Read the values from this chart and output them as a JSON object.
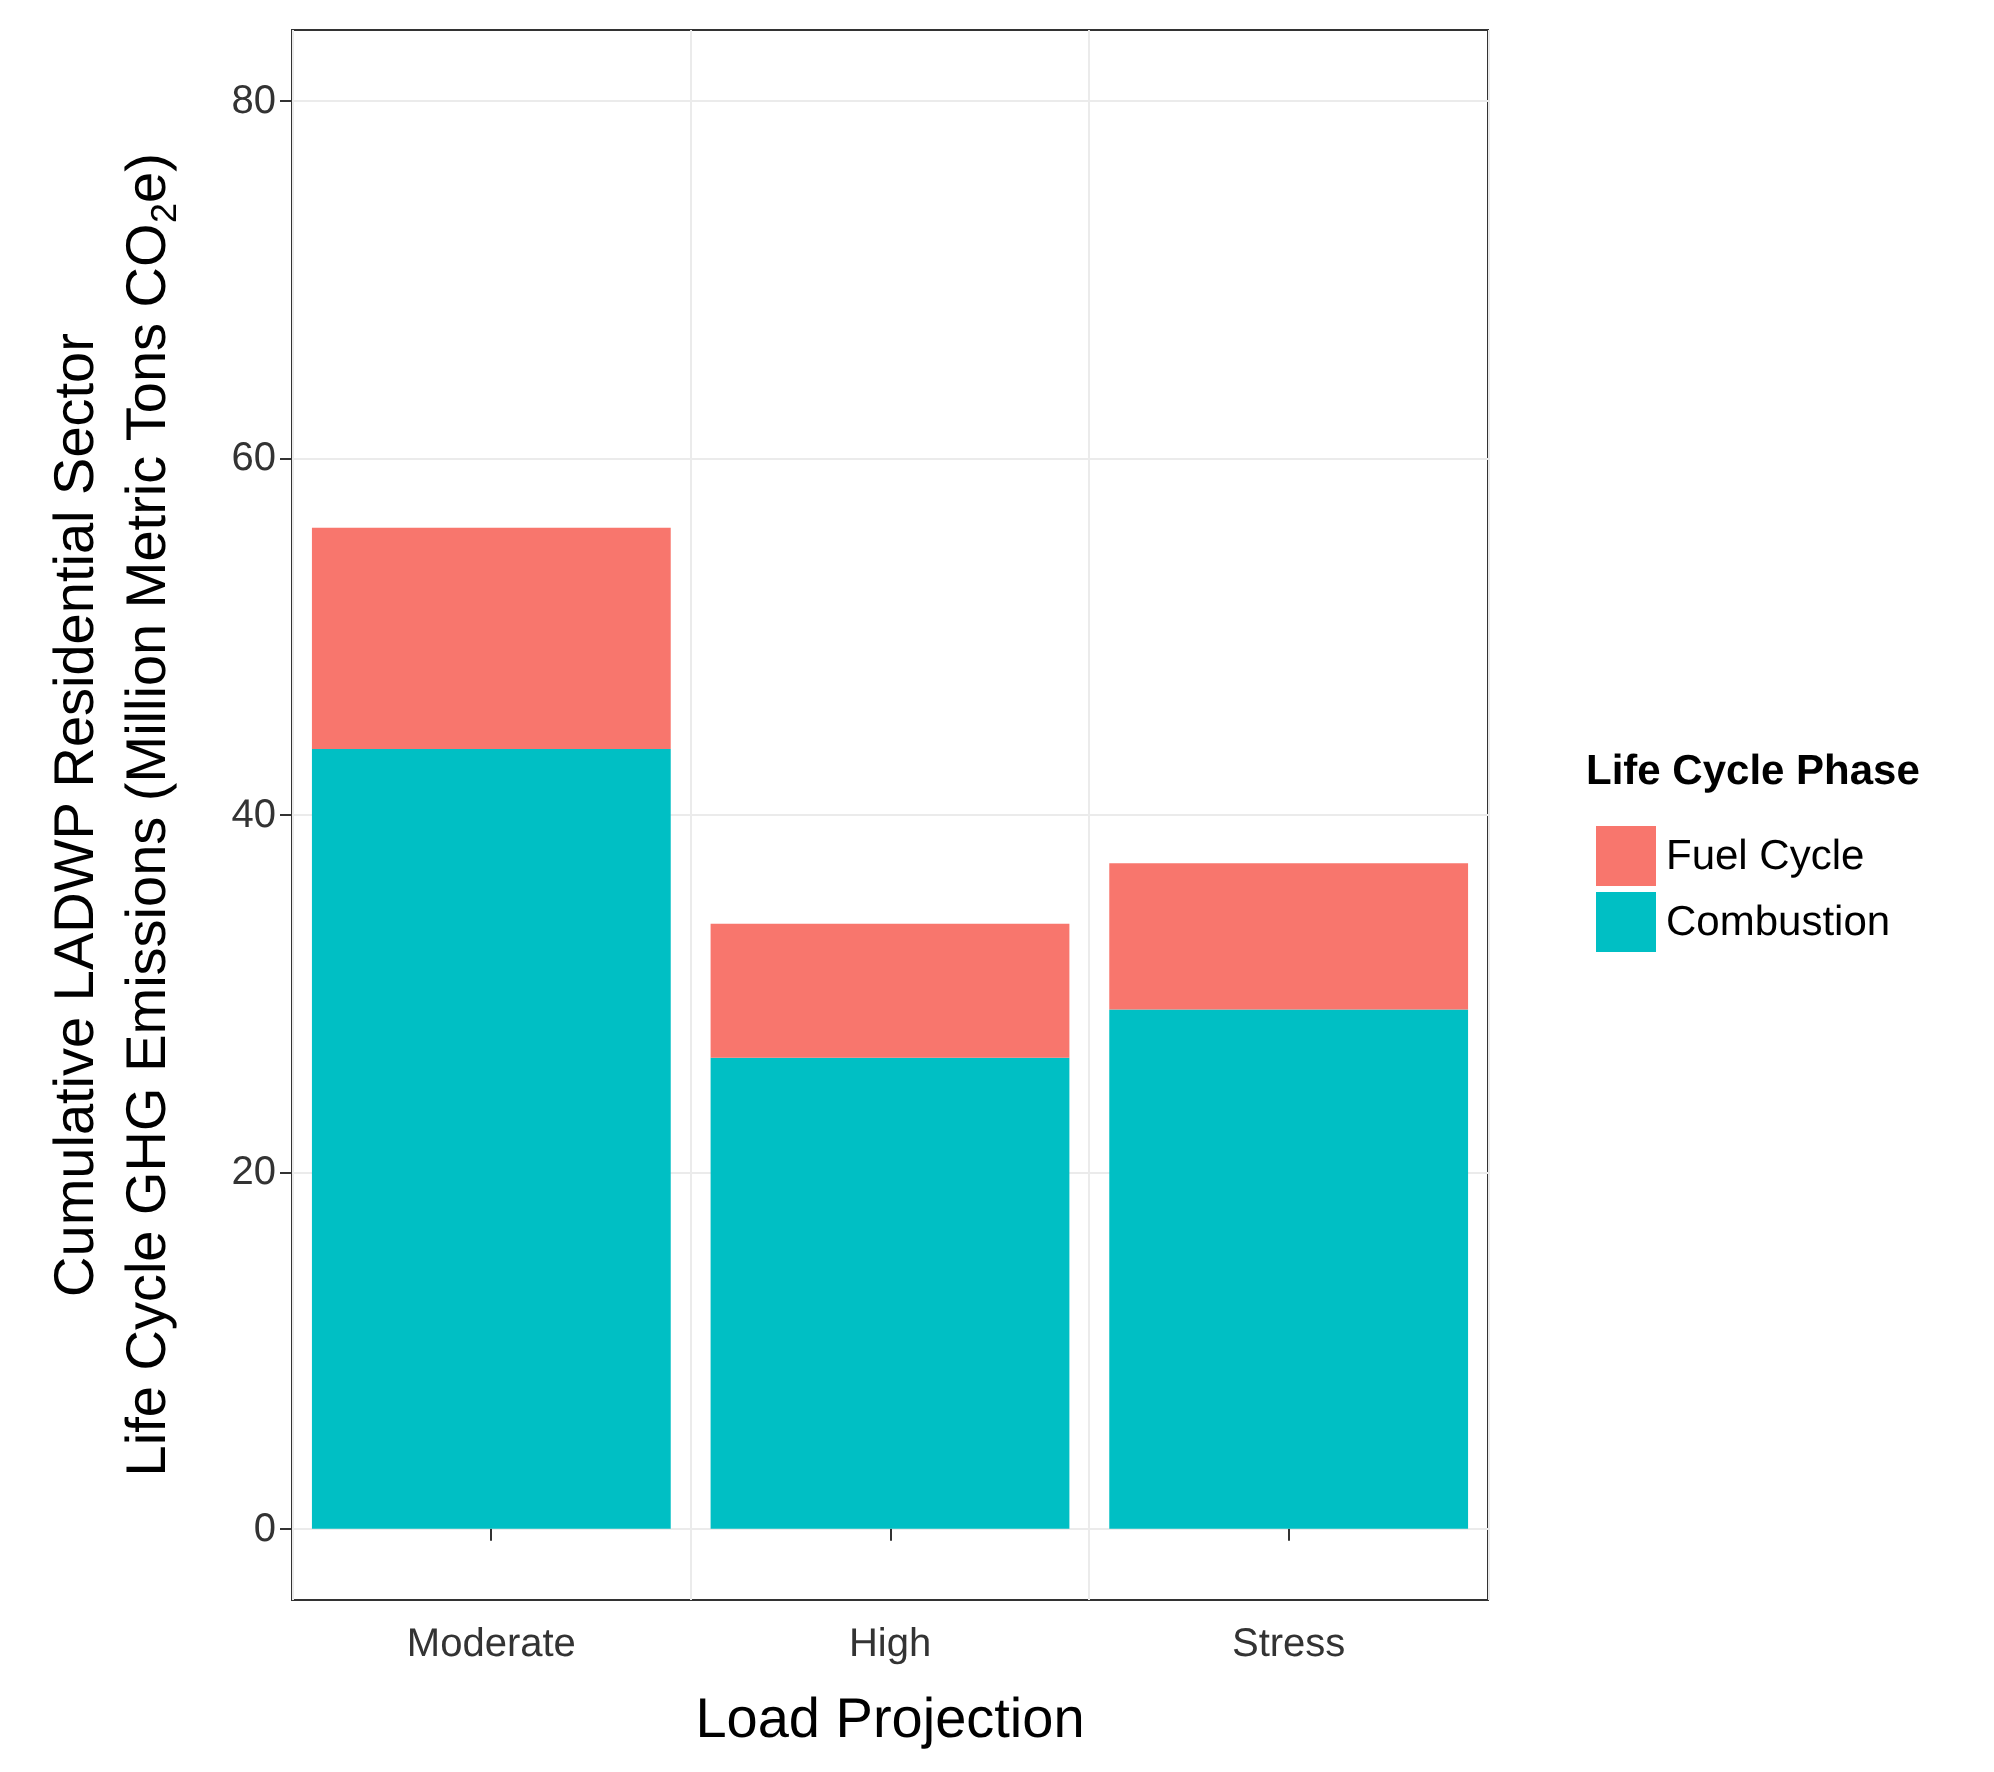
{
  "chart_data": {
    "type": "bar",
    "stacked": true,
    "xlabel": "Load Projection",
    "ylabel": "Cumulative LADWP Residential Sector\nLife Cycle GHG Emissions (Million Metric Tons CO$_{2}$e)",
    "legend_title": "Life Cycle Phase",
    "categories": [
      "Moderate",
      "High",
      "Stress"
    ],
    "series": [
      {
        "name": "Combustion",
        "color": "#00bfc4",
        "values": [
          43.7,
          26.4,
          29.1
        ]
      },
      {
        "name": "Fuel Cycle",
        "color": "#f8766d",
        "values": [
          12.4,
          7.5,
          8.2
        ]
      }
    ],
    "ylim": [
      -4,
      84
    ],
    "yticks": [
      0,
      20,
      40,
      60,
      80
    ],
    "grid": true,
    "legend": "right"
  }
}
